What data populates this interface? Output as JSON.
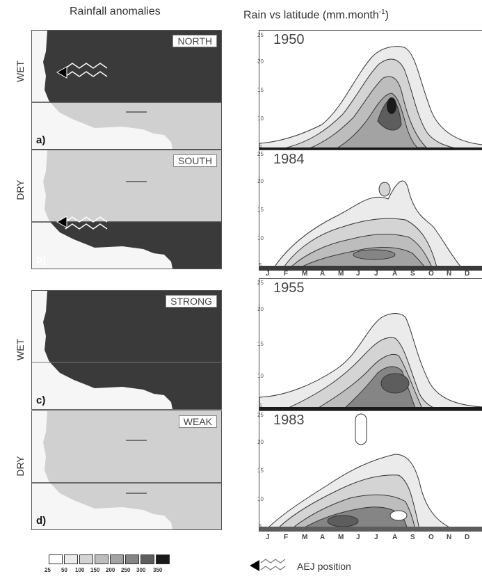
{
  "headers": {
    "left": "Rainfall anomalies",
    "right_prefix": "Rain vs latitude (mm.month",
    "right_sup": "-1",
    "right_suffix": ")"
  },
  "rows": [
    {
      "state": "WET",
      "panel": "a)",
      "tag": "NORTH",
      "year": "1950",
      "north_dark": true,
      "south_dark": false
    },
    {
      "state": "DRY",
      "panel": "b)",
      "tag": "SOUTH",
      "year": "1984",
      "north_dark": false,
      "south_dark": true
    },
    {
      "state": "WET",
      "panel": "c)",
      "tag": "STRONG",
      "year": "1955",
      "north_dark": true,
      "south_dark": true
    },
    {
      "state": "DRY",
      "panel": "d)",
      "tag": "WEAK",
      "year": "1983",
      "north_dark": false,
      "south_dark": false
    }
  ],
  "y_ticks": [
    "25",
    "20",
    "15",
    "10",
    "5"
  ],
  "months": [
    "J",
    "F",
    "M",
    "A",
    "M",
    "J",
    "J",
    "A",
    "S",
    "O",
    "N",
    "D"
  ],
  "legend": {
    "values": [
      "25",
      "50",
      "100",
      "150",
      "200",
      "250",
      "300",
      "350"
    ],
    "aej_label": "AEJ position"
  },
  "colors": {
    "dark": "#3a3a3a",
    "light": "#d0d0d0",
    "ocean": "#f6f6f6",
    "shades": [
      "#ffffff",
      "#ebebeb",
      "#d4d4d4",
      "#bdbdbd",
      "#a3a3a3",
      "#858585",
      "#5d5d5d",
      "#1a1a1a"
    ]
  }
}
